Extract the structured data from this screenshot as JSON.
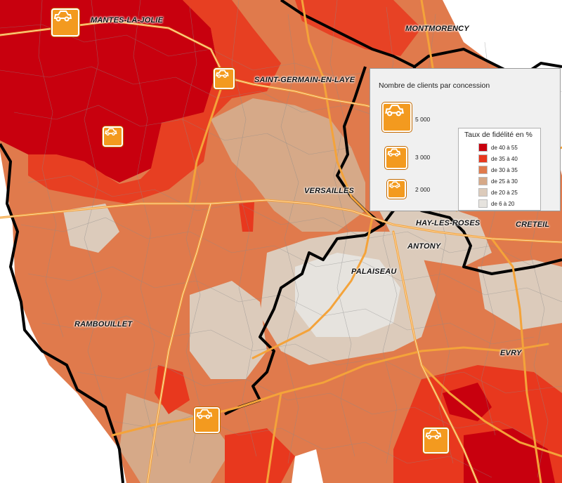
{
  "cities": [
    {
      "id": "mantes",
      "name": "MANTES-LA-JOLIE"
    },
    {
      "id": "montmorency",
      "name": "MONTMORENCY"
    },
    {
      "id": "saint-germain",
      "name": "SAINT-GERMAIN-EN-LAYE"
    },
    {
      "id": "versailles",
      "name": "VERSAILLES"
    },
    {
      "id": "hay",
      "name": "HAY-LES-ROSES"
    },
    {
      "id": "creteil",
      "name": "CRETEIL"
    },
    {
      "id": "antony",
      "name": "ANTONY"
    },
    {
      "id": "palaiseau",
      "name": "PALAISEAU"
    },
    {
      "id": "rambouillet",
      "name": "RAMBOUILLET"
    },
    {
      "id": "evry",
      "name": "EVRY"
    }
  ],
  "dealerships": {
    "icon": "car-icon",
    "count": 5
  },
  "legend": {
    "clients_title": "Nombre de clients par concession",
    "sizes": [
      "5 000",
      "3 000",
      "2 000"
    ],
    "loyalty_title": "Taux de fidélité en %",
    "classes": [
      {
        "label": "de 40 à 55",
        "color": "#c8000e"
      },
      {
        "label": "de 35 à 40",
        "color": "#e8381e"
      },
      {
        "label": "de 30 à 35",
        "color": "#e07a4c"
      },
      {
        "label": "de 25 à 30",
        "color": "#d6a988"
      },
      {
        "label": "de 20 à 25",
        "color": "#dccbbb"
      },
      {
        "label": "de 6 à 20",
        "color": "#e6e3de"
      }
    ]
  },
  "colors": {
    "road": "#f4a33a",
    "dept_border": "#000000",
    "commune_border": "#8a8a8a",
    "no_data": "#ffffff"
  }
}
